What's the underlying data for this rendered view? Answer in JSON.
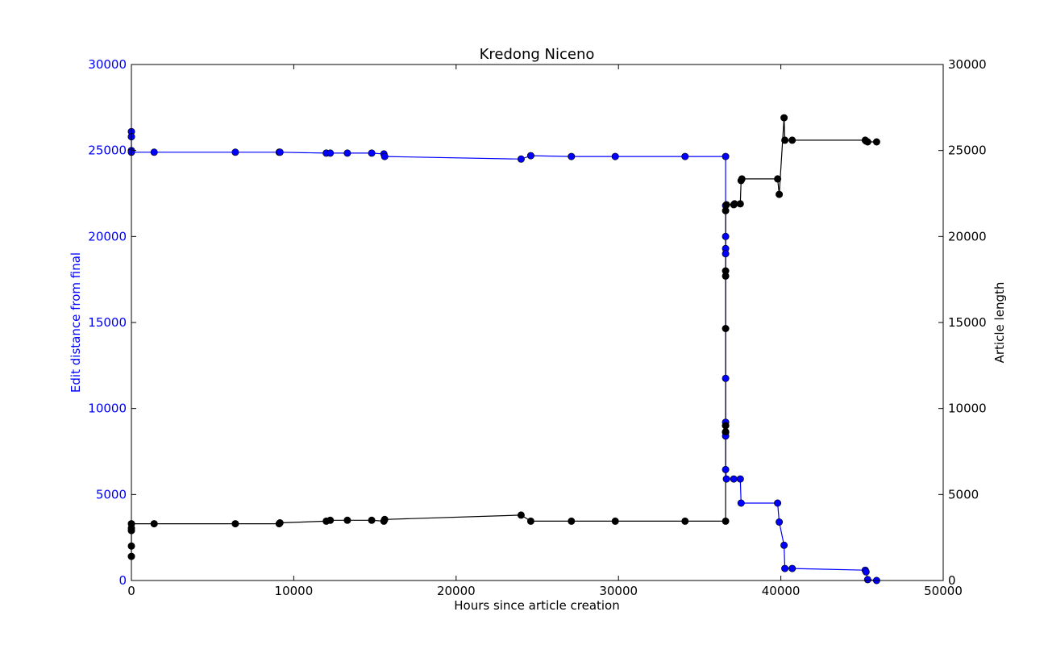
{
  "chart_data": {
    "type": "line",
    "title": "Kredong Niceno",
    "xlabel": "Hours since article creation",
    "ylabel_left": "Edit distance from final",
    "ylabel_right": "Article length",
    "xlim": [
      0,
      50000
    ],
    "ylim_left": [
      0,
      30000
    ],
    "ylim_right": [
      0,
      30000
    ],
    "x_ticks": [
      0,
      10000,
      20000,
      30000,
      40000,
      50000
    ],
    "y_ticks_left": [
      0,
      5000,
      10000,
      15000,
      20000,
      25000,
      30000
    ],
    "y_ticks_right": [
      0,
      5000,
      10000,
      15000,
      20000,
      25000,
      30000
    ],
    "grid": false,
    "colors": {
      "edit_distance": "#0000ff",
      "article_length": "#000000",
      "left_axis_text": "#0000ff"
    },
    "series": [
      {
        "axis": "left",
        "x": [
          0,
          0,
          0,
          0,
          1400,
          6400,
          9100,
          9150,
          12000,
          12250,
          13300,
          14800,
          15550,
          15600,
          24000,
          24600,
          27100,
          29800,
          34100,
          36600,
          36600,
          36600,
          36600,
          36600,
          36600,
          36600,
          36600,
          36600,
          36600,
          36600,
          36650,
          37100,
          37500,
          37550,
          39800,
          39900,
          40200,
          40250,
          40700,
          45200,
          45250,
          45350,
          45900
        ],
        "y": [
          26100,
          25800,
          25000,
          24900,
          24900,
          24900,
          24900,
          24900,
          24850,
          24850,
          24850,
          24850,
          24800,
          24650,
          24500,
          24700,
          24650,
          24650,
          24650,
          24650,
          21800,
          20000,
          19300,
          19000,
          11750,
          9200,
          9000,
          8600,
          8400,
          6450,
          5900,
          5900,
          5900,
          4500,
          4500,
          3400,
          2050,
          700,
          700,
          600,
          500,
          50,
          0
        ]
      },
      {
        "axis": "right",
        "x": [
          0,
          0,
          0,
          0,
          0,
          1400,
          6400,
          9100,
          9150,
          12000,
          12250,
          13300,
          14800,
          15550,
          15600,
          24000,
          24600,
          27100,
          29800,
          34100,
          36600,
          36600,
          36600,
          36600,
          36600,
          36600,
          36600,
          36650,
          37100,
          37150,
          37500,
          37550,
          37600,
          39800,
          39900,
          40200,
          40250,
          40700,
          45200,
          45250,
          45350,
          45900
        ],
        "y": [
          1400,
          2000,
          2900,
          3050,
          3300,
          3300,
          3300,
          3300,
          3350,
          3450,
          3500,
          3500,
          3500,
          3450,
          3550,
          3800,
          3450,
          3450,
          3450,
          3450,
          3450,
          8650,
          9000,
          14650,
          17700,
          18000,
          21500,
          21850,
          21850,
          21900,
          21900,
          23250,
          23350,
          23350,
          22450,
          26900,
          25600,
          25600,
          25600,
          25550,
          25500,
          25500
        ]
      }
    ]
  }
}
